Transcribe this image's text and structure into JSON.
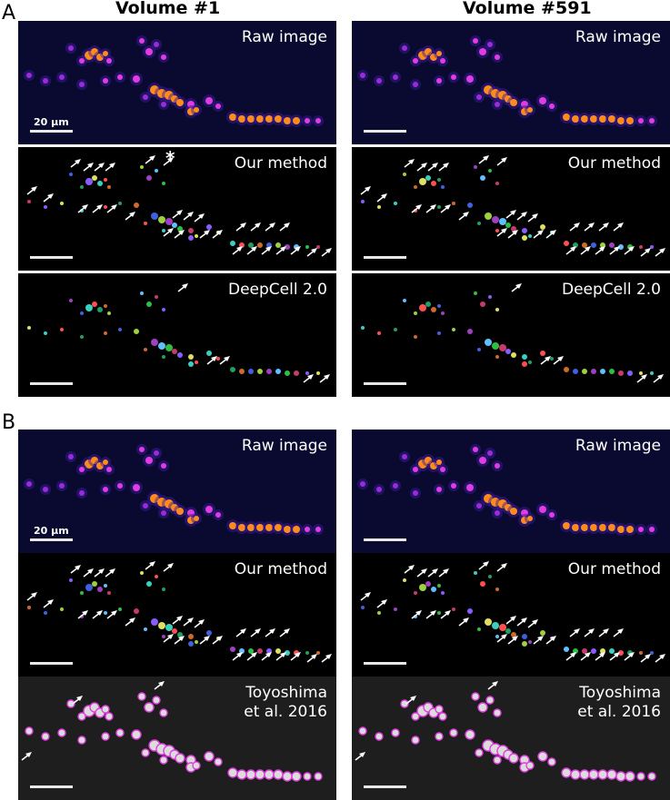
{
  "columns": [
    "Volume #1",
    "Volume #591"
  ],
  "sections": [
    "A",
    "B"
  ],
  "labels": {
    "raw": "Raw image",
    "ours": "Our method",
    "deepcell": "DeepCell 2.0",
    "toyo": "Toyoshima\net al. 2016"
  },
  "scalebar_label": "20 μm",
  "asterisk": "*",
  "colors": {
    "raw_background": "#0a0a30",
    "raw_cells": [
      "#ff8c1a",
      "#e03ce0",
      "#9a2bd8",
      "#6a1fbf"
    ],
    "toyo_outline": "#e040e0"
  }
}
